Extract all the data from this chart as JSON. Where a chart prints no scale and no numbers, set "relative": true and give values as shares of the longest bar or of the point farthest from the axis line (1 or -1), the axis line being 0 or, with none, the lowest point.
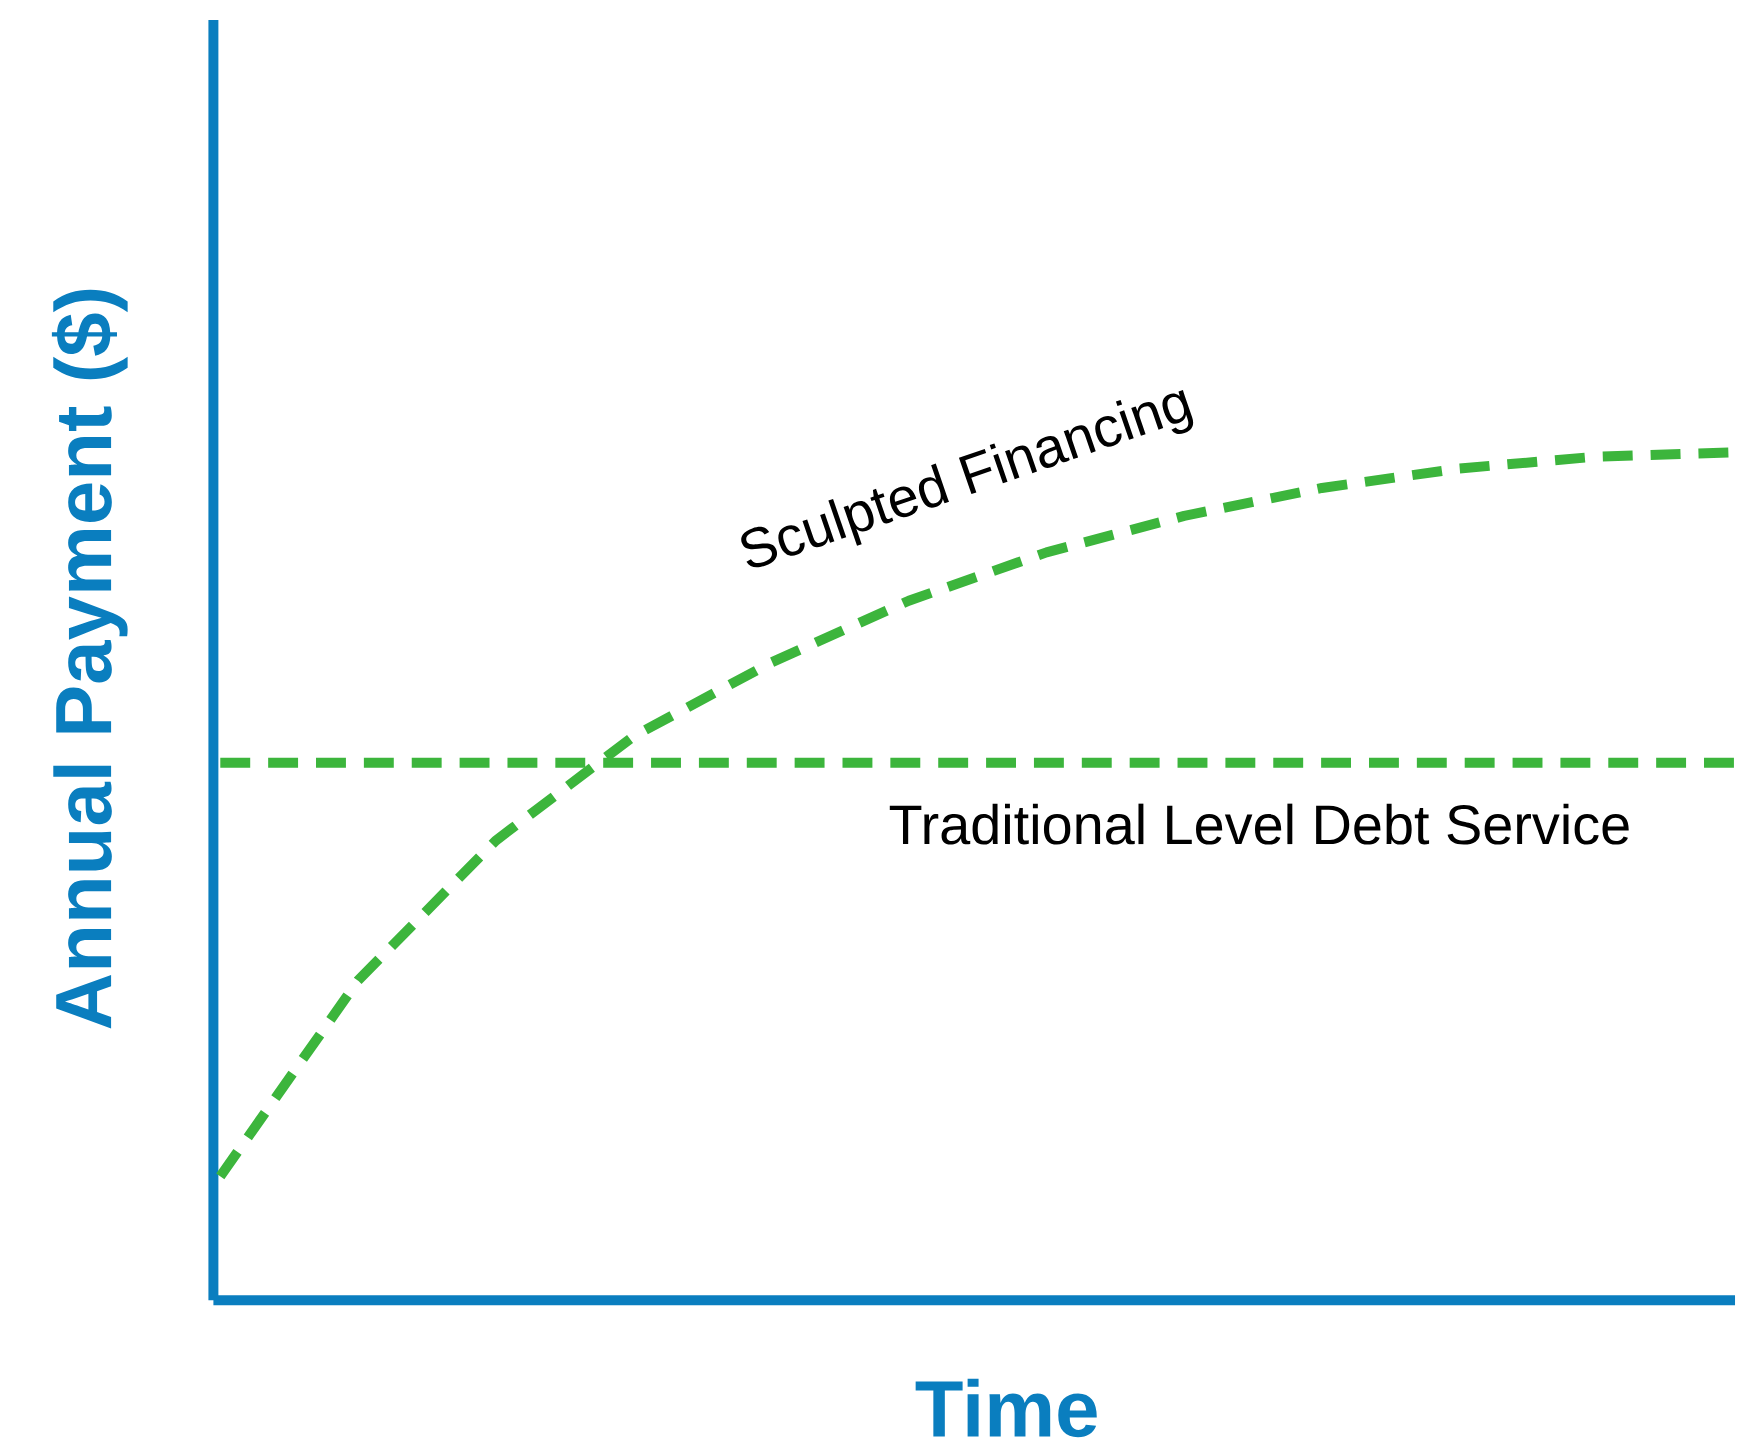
{
  "chart_data": {
    "type": "line",
    "relative": true,
    "xlabel": "Time",
    "ylabel": "Annual Payment ($)",
    "legend": false,
    "line_style": "dashed",
    "marker": "none",
    "categories": [
      null,
      null,
      null,
      null,
      null,
      null,
      null,
      null,
      null,
      null,
      null,
      null
    ],
    "series": [
      {
        "name": "Sculpted Financing",
        "color": "#3cb53c",
        "values": [
          0.146,
          0.377,
          0.542,
          0.665,
          0.752,
          0.825,
          0.882,
          0.925,
          0.958,
          0.981,
          0.995,
          1
        ]
      },
      {
        "name": "Traditional Level Debt Service",
        "color": "#3cb53c",
        "values": [
          0.634,
          0.634,
          0.634,
          0.634,
          0.634,
          0.634,
          0.634,
          0.634,
          0.634,
          0.634,
          0.634,
          0.634
        ]
      }
    ]
  }
}
